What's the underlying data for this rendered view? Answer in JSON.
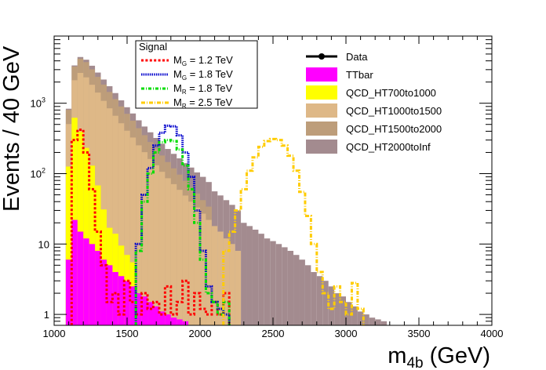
{
  "chart_data": {
    "type": "histogram",
    "xlabel": "m",
    "xlabel_sub": "4b",
    "xlabel_unit": " (GeV)",
    "ylabel": "Events / 40 GeV",
    "xlim": [
      1000,
      4000
    ],
    "ylim_log": [
      0.7,
      9000
    ],
    "y_scale": "log",
    "x_ticks": [
      1000,
      1500,
      2000,
      2500,
      3000,
      3500,
      4000
    ],
    "y_ticks": [
      {
        "value": 1,
        "label": "1"
      },
      {
        "value": 10,
        "label": "10"
      },
      {
        "value": 100,
        "label": "10",
        "exp": "2"
      },
      {
        "value": 1000,
        "label": "10",
        "exp": "3"
      }
    ],
    "bin_width": 40,
    "stack": [
      {
        "name": "QCD_HT2000toInf",
        "color": "#a38b8f",
        "bins": [
          [
            1080,
            30
          ],
          [
            1120,
            120
          ],
          [
            1160,
            240
          ],
          [
            1200,
            320
          ],
          [
            1240,
            380
          ],
          [
            1280,
            360
          ],
          [
            1320,
            330
          ],
          [
            1360,
            300
          ],
          [
            1400,
            250
          ],
          [
            1440,
            200
          ],
          [
            1480,
            170
          ],
          [
            1520,
            150
          ],
          [
            1560,
            130
          ],
          [
            1600,
            115
          ],
          [
            1640,
            105
          ],
          [
            1680,
            95
          ],
          [
            1720,
            85
          ],
          [
            1760,
            78
          ],
          [
            1800,
            72
          ],
          [
            1840,
            68
          ],
          [
            1880,
            62
          ],
          [
            1920,
            58
          ],
          [
            1960,
            52
          ],
          [
            2000,
            48
          ],
          [
            2040,
            42
          ],
          [
            2080,
            38
          ],
          [
            2120,
            34
          ],
          [
            2160,
            30
          ],
          [
            2200,
            26
          ],
          [
            2240,
            22
          ],
          [
            2280,
            20
          ],
          [
            2320,
            18
          ],
          [
            2360,
            16
          ],
          [
            2400,
            14
          ],
          [
            2440,
            12
          ],
          [
            2480,
            11
          ],
          [
            2520,
            10
          ],
          [
            2560,
            9
          ],
          [
            2600,
            8
          ],
          [
            2640,
            7
          ],
          [
            2680,
            6
          ],
          [
            2720,
            5
          ],
          [
            2760,
            4
          ],
          [
            2800,
            3.5
          ],
          [
            2840,
            3
          ],
          [
            2880,
            2.5
          ],
          [
            2920,
            2
          ],
          [
            2960,
            1.8
          ],
          [
            3000,
            1.5
          ],
          [
            3040,
            1.3
          ],
          [
            3080,
            1.1
          ],
          [
            3120,
            1.0
          ],
          [
            3160,
            0.9
          ],
          [
            3200,
            0.85
          ],
          [
            3240,
            0.8
          ]
        ]
      },
      {
        "name": "QCD_HT1500to2000",
        "color": "#bd9d7a",
        "bins": [
          [
            1080,
            300
          ],
          [
            1120,
            1200
          ],
          [
            1160,
            1600
          ],
          [
            1200,
            1500
          ],
          [
            1240,
            1200
          ],
          [
            1280,
            950
          ],
          [
            1320,
            760
          ],
          [
            1360,
            600
          ],
          [
            1400,
            480
          ],
          [
            1440,
            380
          ],
          [
            1480,
            300
          ],
          [
            1520,
            240
          ],
          [
            1560,
            190
          ],
          [
            1600,
            150
          ],
          [
            1640,
            120
          ],
          [
            1680,
            95
          ],
          [
            1720,
            75
          ],
          [
            1760,
            60
          ],
          [
            1800,
            48
          ],
          [
            1840,
            38
          ],
          [
            1880,
            30
          ],
          [
            1920,
            24
          ],
          [
            1960,
            19
          ],
          [
            2000,
            15
          ],
          [
            2040,
            12
          ]
        ]
      },
      {
        "name": "QCD_HT1000to1500",
        "color": "#deb887",
        "bins": [
          [
            1080,
            380
          ],
          [
            1120,
            1500
          ],
          [
            1160,
            2300
          ],
          [
            1200,
            2100
          ],
          [
            1240,
            1700
          ],
          [
            1280,
            1350
          ],
          [
            1320,
            1050
          ],
          [
            1360,
            830
          ],
          [
            1400,
            650
          ],
          [
            1440,
            510
          ],
          [
            1480,
            400
          ],
          [
            1520,
            320
          ],
          [
            1560,
            250
          ],
          [
            1600,
            200
          ],
          [
            1640,
            160
          ],
          [
            1680,
            130
          ],
          [
            1720,
            105
          ],
          [
            1760,
            85
          ],
          [
            1800,
            70
          ],
          [
            1840,
            58
          ],
          [
            1880,
            48
          ],
          [
            1920,
            40
          ],
          [
            1960,
            33
          ],
          [
            2000,
            27
          ],
          [
            2040,
            22
          ],
          [
            2080,
            18
          ],
          [
            2120,
            15
          ],
          [
            2160,
            12
          ],
          [
            2200,
            10
          ],
          [
            2240,
            8
          ]
        ]
      },
      {
        "name": "QCD_HT700to1000",
        "color": "#ffff00",
        "bins": [
          [
            1080,
            120
          ],
          [
            1120,
            600
          ],
          [
            1160,
            380
          ],
          [
            1200,
            220
          ],
          [
            1240,
            120
          ],
          [
            1280,
            60
          ],
          [
            1320,
            25
          ],
          [
            1360,
            12
          ],
          [
            1400,
            10
          ],
          [
            1440,
            6
          ],
          [
            1480,
            4
          ],
          [
            1520,
            3
          ]
        ]
      },
      {
        "name": "TTbar",
        "color": "#ff00ff",
        "bins": [
          [
            1080,
            6
          ],
          [
            1120,
            22
          ],
          [
            1160,
            15
          ],
          [
            1200,
            12
          ],
          [
            1240,
            10
          ],
          [
            1280,
            8
          ],
          [
            1320,
            6
          ],
          [
            1360,
            5
          ],
          [
            1400,
            4
          ],
          [
            1440,
            3.5
          ],
          [
            1480,
            3
          ],
          [
            1520,
            2.5
          ],
          [
            1560,
            2
          ],
          [
            1600,
            1.8
          ],
          [
            1640,
            1.5
          ],
          [
            1680,
            1.3
          ],
          [
            1720,
            1.1
          ],
          [
            1760,
            1.0
          ],
          [
            1800,
            0.9
          ],
          [
            1840,
            0.85
          ],
          [
            1880,
            0.8
          ]
        ]
      }
    ],
    "legend_data": {
      "name": "Data"
    },
    "signal_title": "Signal",
    "signals": [
      {
        "label_main": "M",
        "label_sub": "G",
        "label_rest": " = 1.2 TeV",
        "color": "#ff0000",
        "dash": "3,2.4",
        "bins": [
          [
            1120,
            300
          ],
          [
            1160,
            420
          ],
          [
            1200,
            200
          ],
          [
            1240,
            60
          ],
          [
            1280,
            15
          ],
          [
            1320,
            5
          ],
          [
            1360,
            1.5
          ],
          [
            1400,
            2
          ],
          [
            1440,
            1
          ],
          [
            1480,
            3
          ],
          [
            1520,
            1.5
          ],
          [
            1560,
            1
          ],
          [
            1600,
            2
          ],
          [
            1640,
            1.2
          ],
          [
            1680,
            1.5
          ],
          [
            1720,
            1
          ],
          [
            1760,
            2.5
          ],
          [
            1800,
            1
          ],
          [
            1840,
            1.5
          ],
          [
            1880,
            3
          ],
          [
            1920,
            1
          ],
          [
            1960,
            2
          ],
          [
            2000,
            1.2
          ],
          [
            2040,
            1
          ],
          [
            2080,
            1.5
          ],
          [
            2120,
            1
          ],
          [
            2160,
            2
          ]
        ]
      },
      {
        "label_main": "M",
        "label_sub": "G",
        "label_rest": " = 1.8 TeV",
        "color": "#0000cc",
        "dash": "1.5,1.2",
        "bins": [
          [
            1560,
            10
          ],
          [
            1600,
            50
          ],
          [
            1640,
            120
          ],
          [
            1680,
            250
          ],
          [
            1720,
            380
          ],
          [
            1760,
            480
          ],
          [
            1800,
            470
          ],
          [
            1840,
            350
          ],
          [
            1880,
            200
          ],
          [
            1920,
            90
          ],
          [
            1960,
            30
          ],
          [
            2000,
            8
          ],
          [
            2040,
            2.5
          ],
          [
            2080,
            1.5
          ],
          [
            2120,
            1.2
          ],
          [
            2160,
            1
          ]
        ]
      },
      {
        "label_main": "M",
        "label_sub": "R",
        "label_rest": " = 1.8 TeV",
        "color": "#00dd00",
        "dash": "4,2,1,2",
        "bins": [
          [
            1560,
            8
          ],
          [
            1600,
            40
          ],
          [
            1640,
            100
          ],
          [
            1680,
            200
          ],
          [
            1720,
            280
          ],
          [
            1760,
            300
          ],
          [
            1800,
            290
          ],
          [
            1840,
            220
          ],
          [
            1880,
            130
          ],
          [
            1920,
            60
          ],
          [
            1960,
            20
          ],
          [
            2000,
            6
          ],
          [
            2040,
            2
          ],
          [
            2080,
            1.5
          ],
          [
            2120,
            1
          ],
          [
            2160,
            1.5
          ]
        ]
      },
      {
        "label_main": "M",
        "label_sub": "R",
        "label_rest": " = 2.5 TeV",
        "color": "#ffcc00",
        "dash": "5,2,1,2",
        "bins": [
          [
            2160,
            8
          ],
          [
            2200,
            15
          ],
          [
            2240,
            30
          ],
          [
            2280,
            60
          ],
          [
            2320,
            110
          ],
          [
            2360,
            170
          ],
          [
            2400,
            240
          ],
          [
            2440,
            290
          ],
          [
            2480,
            310
          ],
          [
            2520,
            300
          ],
          [
            2560,
            250
          ],
          [
            2600,
            180
          ],
          [
            2640,
            110
          ],
          [
            2680,
            55
          ],
          [
            2720,
            25
          ],
          [
            2760,
            10
          ],
          [
            2800,
            4
          ],
          [
            2840,
            2
          ],
          [
            2880,
            1.2
          ],
          [
            2920,
            2.5
          ],
          [
            2960,
            1.5
          ],
          [
            3000,
            1
          ],
          [
            3040,
            2.8
          ],
          [
            3080,
            1.2
          ]
        ]
      }
    ],
    "background_legend": [
      "QCD_HT2000toInf",
      "QCD_HT1500to2000",
      "QCD_HT1000to1500",
      "QCD_HT700to1000",
      "TTbar"
    ],
    "legend_order": [
      "TTbar",
      "QCD_HT700to1000",
      "QCD_HT1000to1500",
      "QCD_HT1500to2000",
      "QCD_HT2000toInf"
    ],
    "legend_placement": "top-right",
    "signal_legend_placement": "top-center",
    "grid": false
  }
}
